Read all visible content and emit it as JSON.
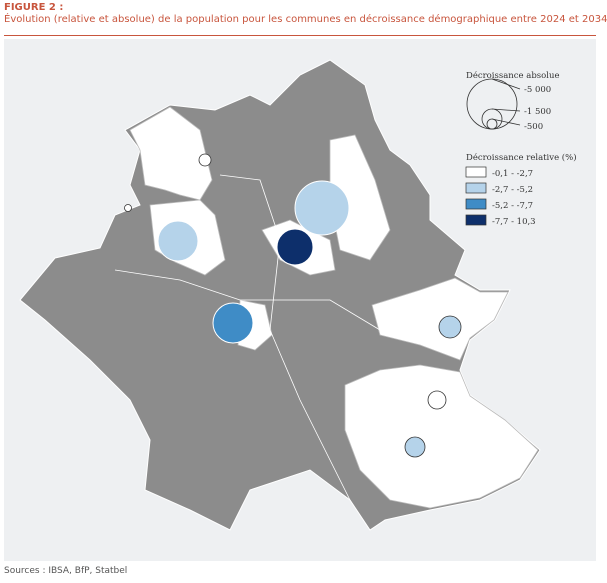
{
  "figure_label": "FIGURE 2 :",
  "title": "Évolution (relative et absolue) de la population pour les communes en décroissance démographique entre 2024 et 2034",
  "sources": "Sources : IBSA, BfP, Statbel",
  "legend": {
    "absolute_title": "Décroissance absolue",
    "absolute_values": [
      "-5 000",
      "-1 500",
      "-500"
    ],
    "relative_title": "Décroissance relative (%)",
    "classes": [
      {
        "label": "-0,1 - -2,7",
        "color": "#ffffff"
      },
      {
        "label": "-2,7 - -5,2",
        "color": "#b5d3ea"
      },
      {
        "label": "-5,2 - -7,7",
        "color": "#3f8cc6"
      },
      {
        "label": "-7,7 - 10,3",
        "color": "#0d2f6b"
      }
    ]
  },
  "colors": {
    "no_decline": "#8c8c8c",
    "accent": "#c8553d",
    "background": "#eef0f2"
  }
}
